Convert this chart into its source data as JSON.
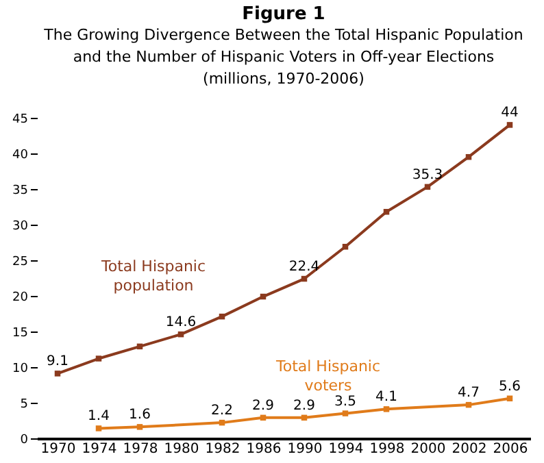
{
  "chart_data": {
    "type": "line",
    "title": "Figure 1",
    "subtitle": "The Growing Divergence Between the Total Hispanic Population and the Number of Hispanic Voters in Off-year Elections",
    "annotations": [
      "(millions, 1970-2006)"
    ],
    "categories": [
      "1970",
      "1974",
      "1978",
      "1980",
      "1982",
      "1986",
      "1990",
      "1994",
      "1998",
      "2000",
      "2002",
      "2006"
    ],
    "series": [
      {
        "name": "Total Hispanic population",
        "color": "#8b3a1e",
        "values": [
          9.1,
          11.2,
          12.9,
          14.6,
          17.1,
          19.9,
          22.4,
          26.9,
          31.8,
          35.3,
          39.5,
          44
        ],
        "value_labels": [
          "9.1",
          null,
          null,
          "14.6",
          null,
          null,
          "22.4",
          null,
          null,
          "35.3",
          null,
          "44"
        ]
      },
      {
        "name": "Total Hispanic voters",
        "color": "#e07b1a",
        "values": [
          null,
          1.4,
          1.6,
          null,
          2.2,
          2.9,
          2.9,
          3.5,
          4.1,
          null,
          4.7,
          5.6
        ],
        "value_labels": [
          null,
          "1.4",
          "1.6",
          null,
          "2.2",
          "2.9",
          "2.9",
          "3.5",
          "4.1",
          null,
          "4.7",
          "5.6"
        ]
      }
    ],
    "ylim": [
      0,
      45
    ],
    "yticks": [
      0,
      5,
      10,
      15,
      20,
      25,
      30,
      35,
      40,
      45
    ],
    "grid": false,
    "legend": false,
    "marker": "square",
    "line_style": "solid"
  }
}
